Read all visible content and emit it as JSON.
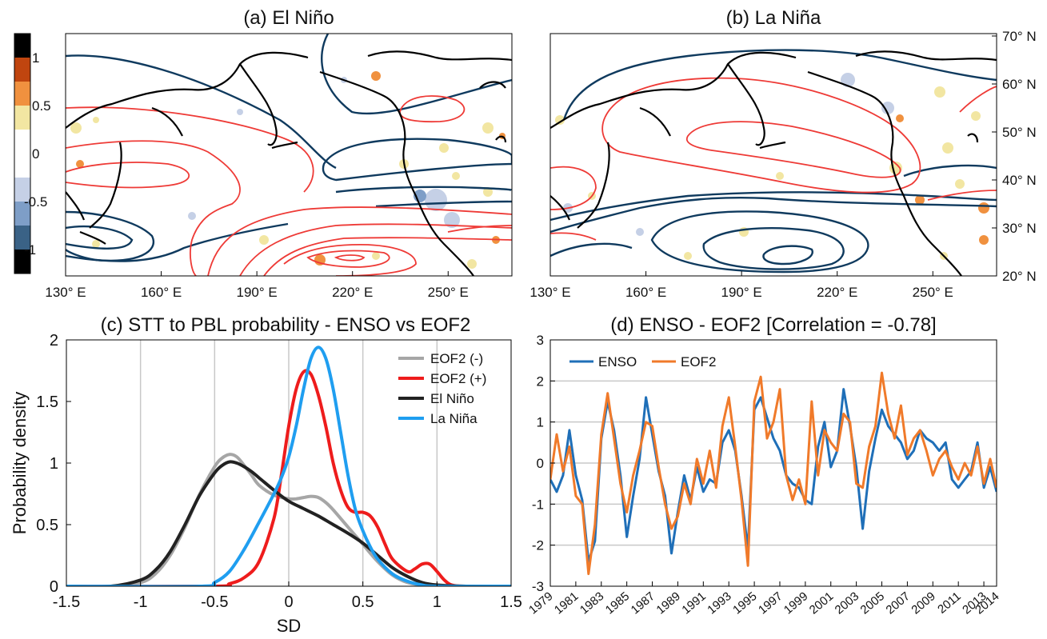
{
  "chart_data": [
    {
      "type": "heatmap",
      "title": "(a) El Niño",
      "x_ticks": [
        "130° E",
        "160° E",
        "190° E",
        "220° E",
        "250° E"
      ],
      "colorbar": {
        "ticks": [
          "1",
          "0.5",
          "0",
          "-0.5",
          "-1"
        ],
        "colors": [
          "#000000",
          "#c0450f",
          "#f0913f",
          "#f2e6a2",
          "#ffffff",
          "#ffffff",
          "#c5d0e6",
          "#7e9ec7",
          "#3a6286",
          "#000000"
        ]
      },
      "contour_colors": {
        "positive": "#ee3a36",
        "negative": "#0f3a5e"
      }
    },
    {
      "type": "heatmap",
      "title": "(b) La Niña",
      "x_ticks": [
        "130° E",
        "160° E",
        "190° E",
        "220° E",
        "250° E"
      ],
      "y_ticks": [
        "70° N",
        "60° N",
        "50° N",
        "40° N",
        "30° N",
        "20° N"
      ]
    },
    {
      "type": "line",
      "title": "(c) STT to PBL probability - ENSO vs EOF2",
      "xlabel": "SD",
      "ylabel": "Probability density",
      "xlim": [
        -1.5,
        1.5
      ],
      "ylim": [
        0,
        2
      ],
      "x_ticks": [
        "-1.5",
        "-1",
        "-0.5",
        "0",
        "0.5",
        "1",
        "1.5"
      ],
      "y_ticks": [
        "0",
        "0.5",
        "1",
        "1.5",
        "2"
      ],
      "grid": "vertical",
      "legend": "top-right",
      "series": [
        {
          "name": "EOF2 (-)",
          "color": "#a6a6a6",
          "x": [
            -1.2,
            -1.0,
            -0.9,
            -0.8,
            -0.7,
            -0.6,
            -0.5,
            -0.45,
            -0.4,
            -0.35,
            -0.3,
            -0.25,
            -0.2,
            -0.1,
            0.0,
            0.05,
            0.1,
            0.15,
            0.2,
            0.25,
            0.3,
            0.4,
            0.5,
            0.6,
            0.7,
            0.8,
            0.9,
            1.0
          ],
          "y": [
            0.0,
            0.03,
            0.1,
            0.25,
            0.48,
            0.75,
            0.97,
            1.04,
            1.07,
            1.05,
            0.98,
            0.9,
            0.82,
            0.74,
            0.71,
            0.71,
            0.72,
            0.73,
            0.72,
            0.68,
            0.62,
            0.48,
            0.34,
            0.2,
            0.09,
            0.03,
            0.01,
            0.0
          ]
        },
        {
          "name": "EOF2 (+)",
          "color": "#ee1c1c",
          "x": [
            -0.5,
            -0.4,
            -0.3,
            -0.2,
            -0.1,
            -0.05,
            0.0,
            0.05,
            0.1,
            0.15,
            0.2,
            0.25,
            0.3,
            0.35,
            0.4,
            0.45,
            0.5,
            0.55,
            0.6,
            0.65,
            0.7,
            0.8,
            0.85,
            0.9,
            0.95,
            1.0,
            1.05,
            1.1,
            1.2
          ],
          "y": [
            0.0,
            0.02,
            0.07,
            0.2,
            0.55,
            0.9,
            1.3,
            1.6,
            1.74,
            1.72,
            1.55,
            1.3,
            1.0,
            0.78,
            0.64,
            0.6,
            0.6,
            0.57,
            0.48,
            0.34,
            0.22,
            0.12,
            0.14,
            0.18,
            0.18,
            0.12,
            0.05,
            0.01,
            0.0
          ]
        },
        {
          "name": "El Niño",
          "color": "#222222",
          "x": [
            -1.2,
            -1.0,
            -0.9,
            -0.8,
            -0.7,
            -0.6,
            -0.5,
            -0.45,
            -0.4,
            -0.35,
            -0.3,
            -0.25,
            -0.2,
            -0.1,
            0.0,
            0.1,
            0.2,
            0.3,
            0.4,
            0.5,
            0.6,
            0.7,
            0.8,
            0.9,
            1.0,
            1.2
          ],
          "y": [
            0.0,
            0.05,
            0.13,
            0.28,
            0.5,
            0.74,
            0.92,
            0.98,
            1.01,
            1.0,
            0.97,
            0.93,
            0.88,
            0.78,
            0.69,
            0.63,
            0.57,
            0.5,
            0.43,
            0.35,
            0.25,
            0.15,
            0.08,
            0.03,
            0.01,
            0.0
          ]
        },
        {
          "name": "La Niña",
          "color": "#1f9ef0",
          "x": [
            -0.6,
            -0.5,
            -0.4,
            -0.3,
            -0.2,
            -0.1,
            -0.05,
            0.0,
            0.05,
            0.1,
            0.15,
            0.2,
            0.25,
            0.3,
            0.35,
            0.4,
            0.45,
            0.5,
            0.55,
            0.6,
            0.7,
            0.8,
            0.9,
            1.0
          ],
          "y": [
            0.0,
            0.03,
            0.12,
            0.3,
            0.52,
            0.75,
            0.88,
            1.05,
            1.3,
            1.6,
            1.85,
            1.94,
            1.85,
            1.6,
            1.25,
            0.9,
            0.62,
            0.45,
            0.32,
            0.22,
            0.1,
            0.04,
            0.01,
            0.0
          ]
        }
      ]
    },
    {
      "type": "line",
      "title": "(d) ENSO - EOF2 [Correlation = -0.78]",
      "ylim": [
        -3,
        3
      ],
      "xlim": [
        1979,
        2014
      ],
      "y_ticks": [
        "3",
        "2",
        "1",
        "0",
        "-1",
        "-2",
        "-3"
      ],
      "x_ticks": [
        "1979",
        "1981",
        "1983",
        "1985",
        "1987",
        "1989",
        "1991",
        "1993",
        "1995",
        "1997",
        "1999",
        "2001",
        "2003",
        "2005",
        "2007",
        "2009",
        "2011",
        "2013",
        "2014"
      ],
      "grid": "horizontal",
      "legend": "top-left",
      "series": [
        {
          "name": "ENSO",
          "color": "#1f6fb8",
          "x": [
            1979,
            1979.5,
            1980,
            1980.5,
            1981,
            1981.5,
            1982,
            1982.5,
            1983,
            1983.5,
            1984,
            1984.5,
            1985,
            1985.5,
            1986,
            1986.5,
            1987,
            1987.5,
            1988,
            1988.5,
            1989,
            1989.5,
            1990,
            1990.5,
            1991,
            1991.5,
            1992,
            1992.5,
            1993,
            1993.5,
            1994,
            1994.5,
            1995,
            1995.5,
            1996,
            1996.5,
            1997,
            1997.5,
            1998,
            1998.5,
            1999,
            1999.5,
            2000,
            2000.5,
            2001,
            2001.5,
            2002,
            2002.5,
            2003,
            2003.5,
            2004,
            2004.5,
            2005,
            2005.5,
            2006,
            2006.5,
            2007,
            2007.5,
            2008,
            2008.5,
            2009,
            2009.5,
            2010,
            2010.5,
            2011,
            2011.5,
            2012,
            2012.5,
            2013,
            2013.5,
            2014
          ],
          "y": [
            -0.4,
            -0.7,
            -0.3,
            0.8,
            -0.3,
            -0.9,
            -2.4,
            -1.9,
            0.6,
            1.5,
            0.8,
            -0.3,
            -1.8,
            -0.8,
            0.1,
            1.6,
            0.7,
            -0.2,
            -0.8,
            -2.2,
            -1.2,
            -0.3,
            -0.9,
            -0.1,
            -0.7,
            -0.4,
            -0.5,
            0.5,
            0.8,
            0.3,
            -0.8,
            -2.1,
            1.3,
            1.6,
            1.1,
            0.6,
            0.3,
            -0.3,
            -0.5,
            -0.6,
            -0.9,
            -1.0,
            0.4,
            1.0,
            -0.1,
            0.3,
            1.8,
            0.9,
            -0.1,
            -1.6,
            -0.2,
            0.6,
            1.3,
            0.9,
            0.7,
            0.5,
            0.1,
            0.3,
            0.8,
            0.6,
            0.5,
            0.3,
            0.5,
            -0.4,
            -0.6,
            -0.4,
            -0.2,
            0.5,
            -0.6,
            -0.1,
            -0.7
          ]
        },
        {
          "name": "EOF2",
          "color": "#f07a2a",
          "x": [
            1979,
            1979.5,
            1980,
            1980.5,
            1981,
            1981.5,
            1982,
            1982.5,
            1983,
            1983.5,
            1984,
            1984.5,
            1985,
            1985.5,
            1986,
            1986.5,
            1987,
            1987.5,
            1988,
            1988.5,
            1989,
            1989.5,
            1990,
            1990.5,
            1991,
            1991.5,
            1992,
            1992.5,
            1993,
            1993.5,
            1994,
            1994.5,
            1995,
            1995.5,
            1996,
            1996.5,
            1997,
            1997.5,
            1998,
            1998.5,
            1999,
            1999.5,
            2000,
            2000.5,
            2001,
            2001.5,
            2002,
            2002.5,
            2003,
            2003.5,
            2004,
            2004.5,
            2005,
            2005.5,
            2006,
            2006.5,
            2007,
            2007.5,
            2008,
            2008.5,
            2009,
            2009.5,
            2010,
            2010.5,
            2011,
            2011.5,
            2012,
            2012.5,
            2013,
            2013.5,
            2014
          ],
          "y": [
            -0.4,
            0.7,
            -0.2,
            0.4,
            -0.8,
            -1.0,
            -2.7,
            -1.5,
            0.7,
            1.7,
            0.6,
            -0.5,
            -1.2,
            -0.3,
            0.3,
            1.0,
            0.9,
            -0.1,
            -1.0,
            -1.6,
            -1.3,
            -0.5,
            -1.0,
            0.1,
            -0.5,
            0.3,
            -0.6,
            0.9,
            1.6,
            0.4,
            -0.9,
            -2.5,
            1.5,
            2.1,
            0.6,
            1.0,
            1.8,
            -0.3,
            -0.9,
            -0.4,
            -1.0,
            1.5,
            -0.3,
            0.8,
            0.5,
            0.3,
            1.2,
            1.0,
            -0.5,
            -0.6,
            0.4,
            0.9,
            2.2,
            1.2,
            0.6,
            1.4,
            0.2,
            0.6,
            0.8,
            0.3,
            -0.3,
            0.1,
            0.3,
            -0.1,
            -0.4,
            0.0,
            -0.3,
            0.4,
            -0.5,
            0.1,
            -0.6
          ]
        }
      ]
    }
  ]
}
